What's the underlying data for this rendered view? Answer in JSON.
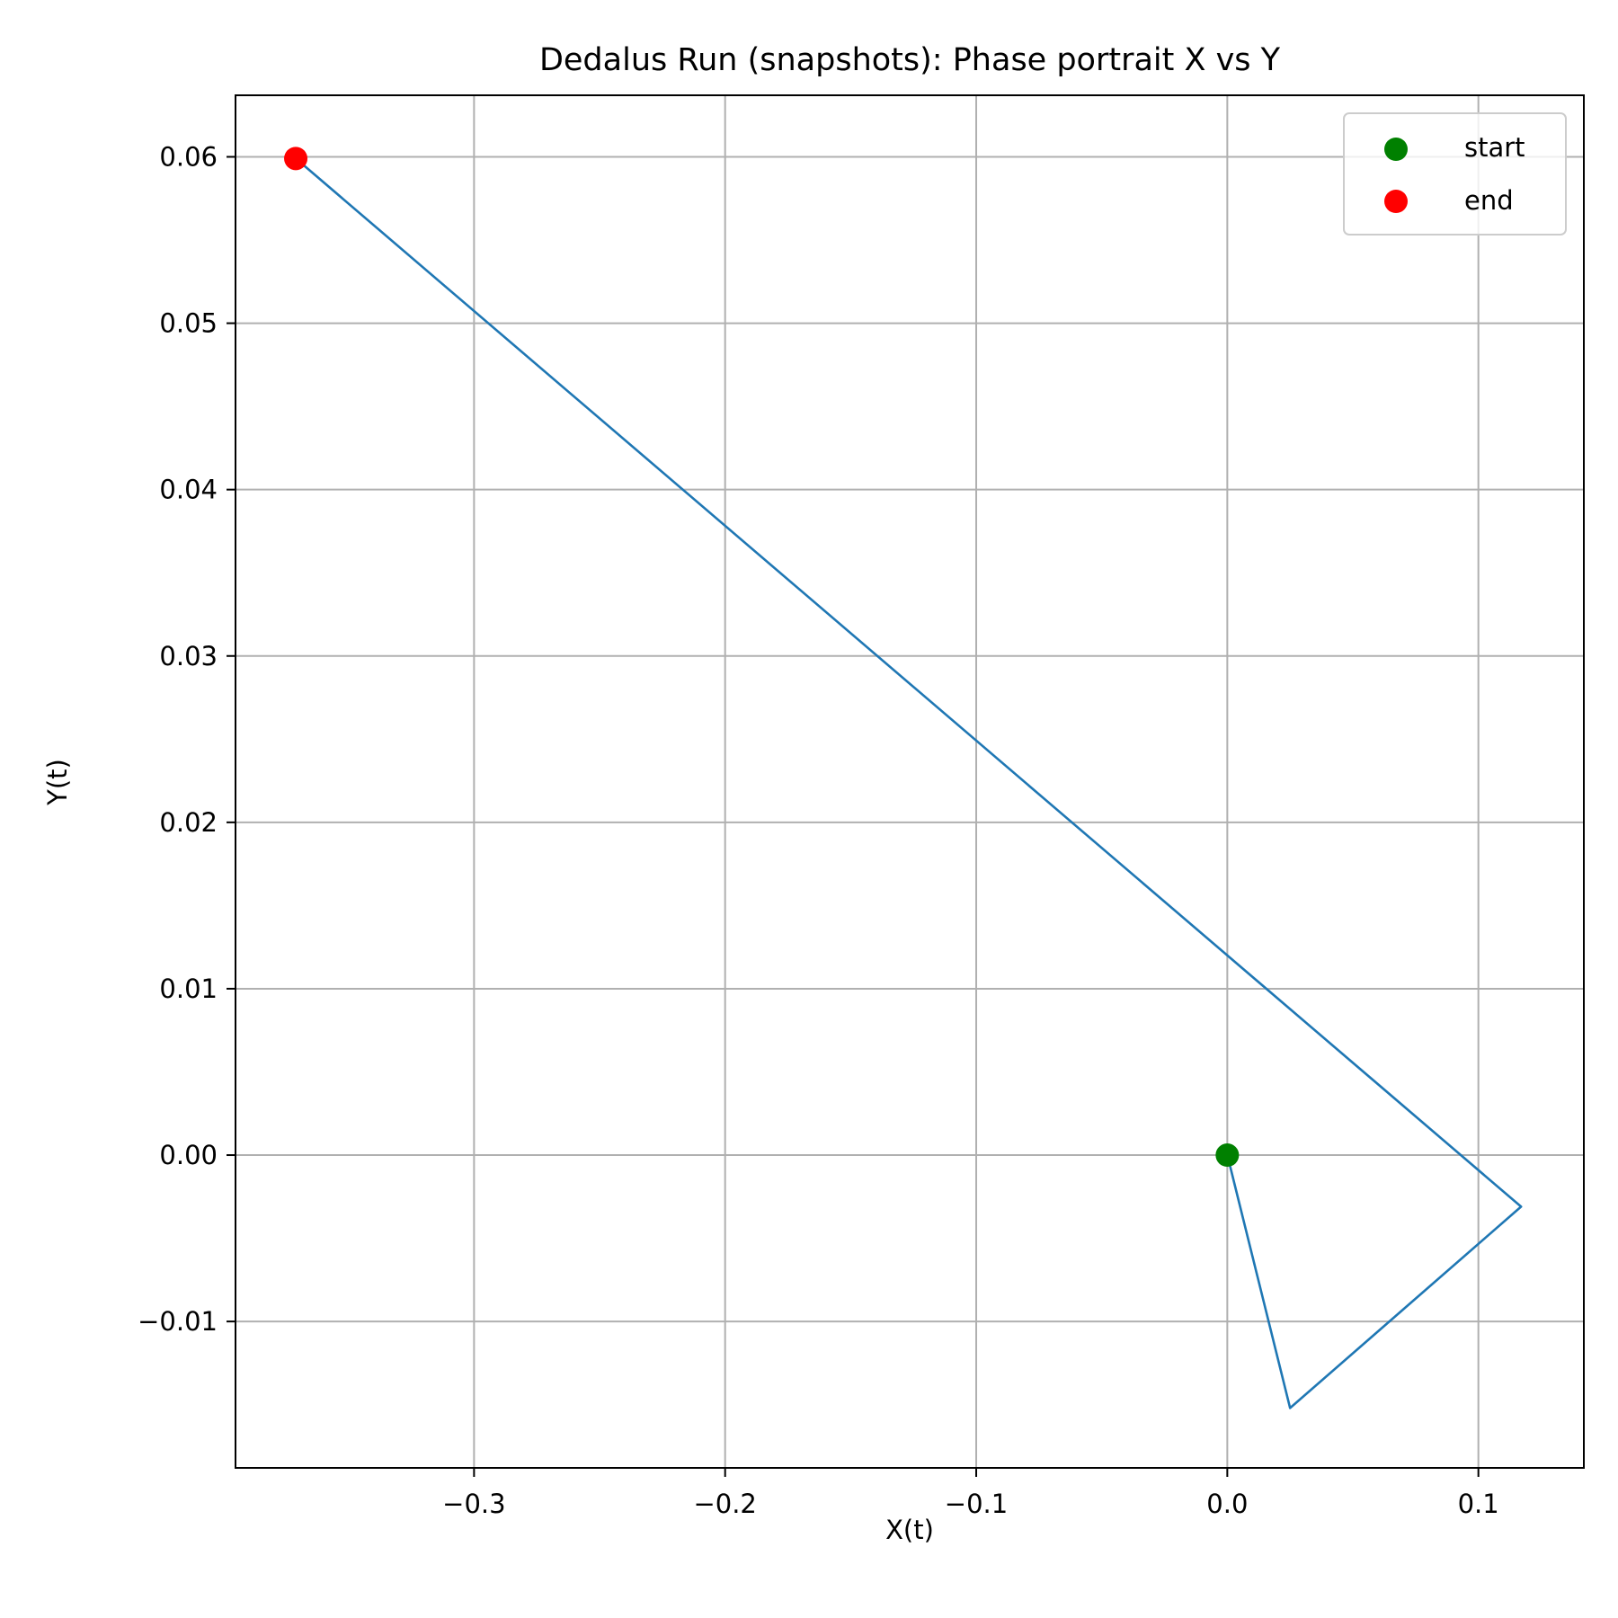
{
  "chart_data": {
    "type": "line",
    "title": "Dedalus Run (snapshots): Phase portrait X vs Y",
    "xlabel": "X(t)",
    "ylabel": "Y(t)",
    "xlim": [
      -0.395,
      0.142
    ],
    "ylim": [
      -0.0188,
      0.0637
    ],
    "xticks": [
      -0.3,
      -0.2,
      -0.1,
      0.0,
      0.1
    ],
    "xtick_labels": [
      "−0.3",
      "−0.2",
      "−0.1",
      "0.0",
      "0.1"
    ],
    "yticks": [
      -0.01,
      0.0,
      0.01,
      0.02,
      0.03,
      0.04,
      0.05,
      0.06
    ],
    "ytick_labels": [
      "−0.01",
      "0.00",
      "0.01",
      "0.02",
      "0.03",
      "0.04",
      "0.05",
      "0.06"
    ],
    "grid": true,
    "legend_position": "top-right",
    "series": [
      {
        "color": "#1f77b4",
        "x": [
          0.0,
          0.025,
          0.117,
          -0.371
        ],
        "y": [
          0.0,
          -0.0152,
          -0.0031,
          0.0599
        ]
      }
    ],
    "markers": [
      {
        "label": "start",
        "color": "#008000",
        "x": 0.0,
        "y": 0.0
      },
      {
        "label": "end",
        "color": "#ff0000",
        "x": -0.371,
        "y": 0.0599
      }
    ]
  }
}
